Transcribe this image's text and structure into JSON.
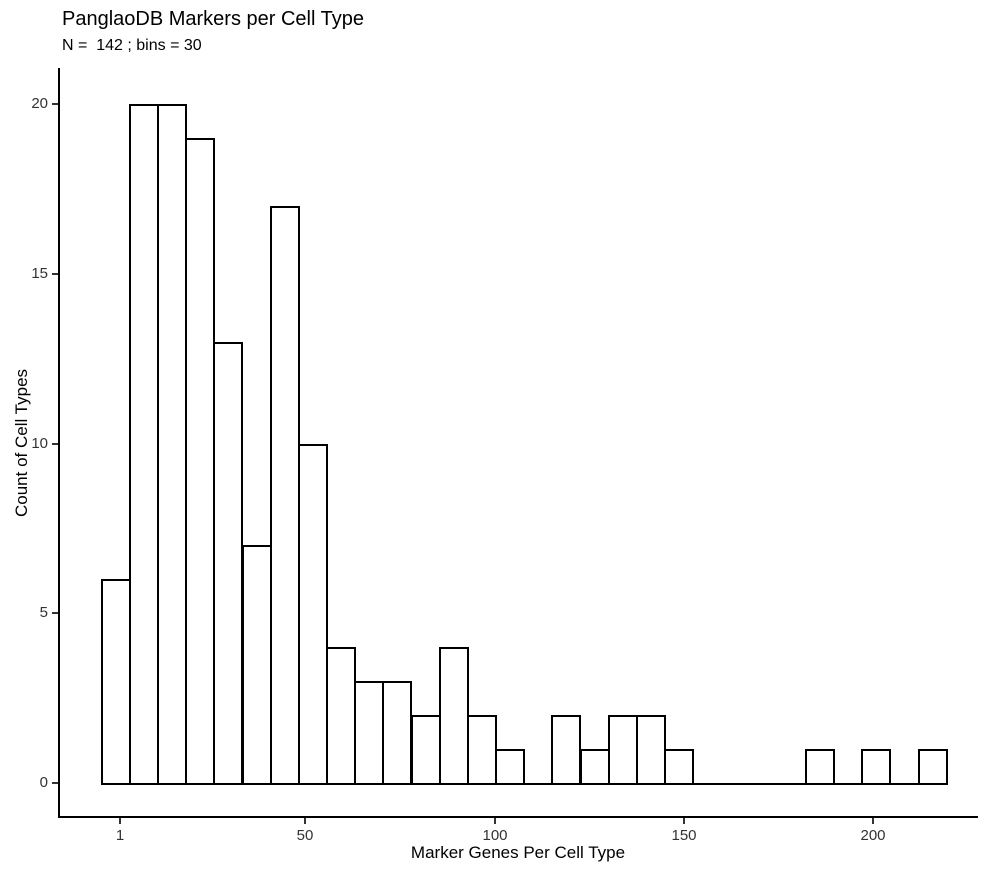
{
  "chart_data": {
    "type": "bar",
    "subtype": "histogram",
    "title": "PanglaoDB Markers per Cell Type",
    "subtitle": "N =  142 ; bins = 30",
    "xlabel": "Marker Genes Per Cell Type",
    "ylabel": "Count of Cell Types",
    "n_total": 142,
    "bins": 30,
    "binwidth": 7.55,
    "x_data_min": 1,
    "x_data_max": 220,
    "bin_centers": [
      1,
      8.6,
      16.1,
      23.7,
      31.2,
      38.8,
      46.3,
      53.9,
      61.4,
      69.0,
      76.5,
      84.1,
      91.6,
      99.2,
      106.7,
      114.3,
      121.8,
      129.4,
      136.9,
      144.5,
      152.0,
      159.6,
      167.1,
      174.7,
      182.2,
      189.8,
      197.3,
      204.9,
      212.4,
      220.0
    ],
    "bin_counts": [
      6,
      20,
      20,
      19,
      13,
      7,
      17,
      10,
      4,
      3,
      3,
      2,
      4,
      2,
      1,
      0,
      2,
      1,
      2,
      2,
      1,
      0,
      0,
      0,
      0,
      1,
      0,
      1,
      0,
      1
    ],
    "x_ticks": [
      1,
      50,
      100,
      150,
      200
    ],
    "y_ticks": [
      0,
      5,
      10,
      15,
      20
    ],
    "ylim": [
      0,
      20
    ],
    "grid": false,
    "legend": "none",
    "bar_fill": "#ffffff",
    "bar_stroke": "#000000",
    "axis_color": "#000000",
    "tick_label_color": "#333333",
    "background_color": "#ffffff"
  }
}
